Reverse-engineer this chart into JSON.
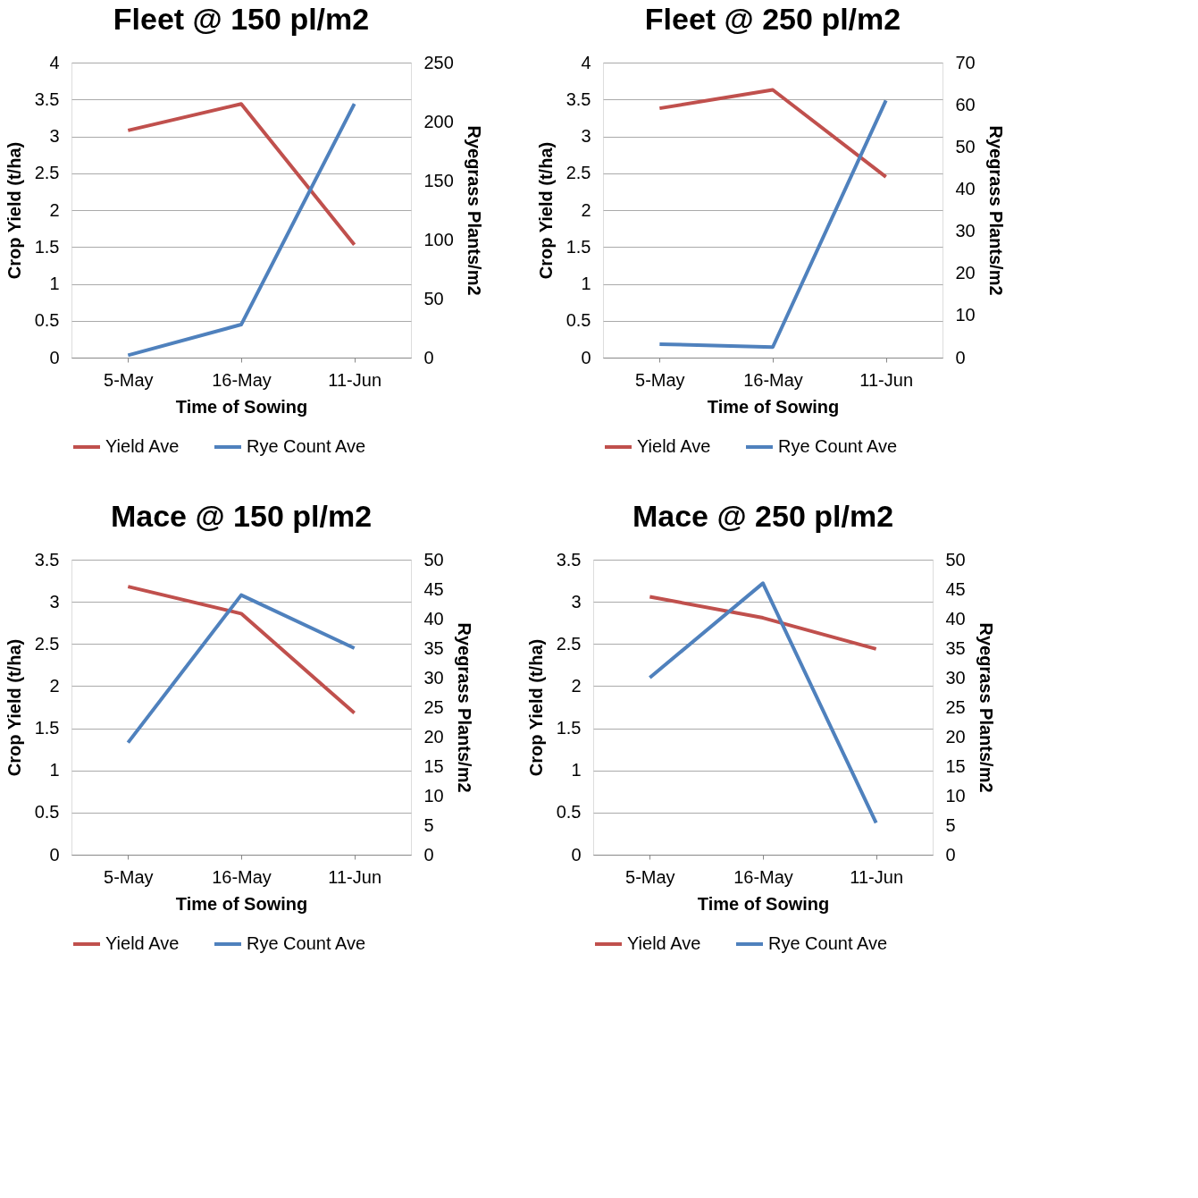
{
  "chart_data": [
    {
      "type": "line",
      "title": "Fleet @ 150 pl/m2",
      "xlabel": "Time of Sowing",
      "ylabel": "Crop Yield (t/ha)",
      "y2label": "Ryegrass Plants/m2",
      "categories": [
        "5-May",
        "16-May",
        "11-Jun"
      ],
      "ylim": [
        0,
        4
      ],
      "yticks": [
        0,
        0.5,
        1,
        1.5,
        2,
        2.5,
        3,
        3.5,
        4
      ],
      "y2lim": [
        0,
        250
      ],
      "y2ticks": [
        0,
        50,
        100,
        150,
        200,
        250
      ],
      "grid": "y",
      "legend": "bottom",
      "line_style": "solid",
      "series": [
        {
          "name": "Yield Ave",
          "color": "#c0504d",
          "values": [
            3.08,
            3.44,
            1.53
          ]
        },
        {
          "name": "Rye Count Ave",
          "color": "#4f81bd",
          "axis": "y2",
          "values": [
            2,
            28,
            215
          ]
        }
      ]
    },
    {
      "type": "line",
      "title": "Fleet @ 250 pl/m2",
      "xlabel": "Time of Sowing",
      "ylabel": "Crop Yield (t/ha)",
      "y2label": "Ryegrass Plants/m2",
      "categories": [
        "5-May",
        "16-May",
        "11-Jun"
      ],
      "ylim": [
        0,
        4
      ],
      "yticks": [
        0,
        0.5,
        1,
        1.5,
        2,
        2.5,
        3,
        3.5,
        4
      ],
      "y2lim": [
        0,
        70
      ],
      "y2ticks": [
        0,
        10,
        20,
        30,
        40,
        50,
        60,
        70
      ],
      "grid": "y",
      "legend": "bottom",
      "line_style": "solid",
      "series": [
        {
          "name": "Yield Ave",
          "color": "#c0504d",
          "values": [
            3.38,
            3.63,
            2.45
          ]
        },
        {
          "name": "Rye Count Ave",
          "color": "#4f81bd",
          "axis": "y2",
          "values": [
            3.2,
            2.5,
            61
          ]
        }
      ]
    },
    {
      "type": "line",
      "title": "Mace @ 150 pl/m2",
      "xlabel": "Time of Sowing",
      "ylabel": "Crop Yield (t/ha)",
      "y2label": "Ryegrass Plants/m2",
      "categories": [
        "5-May",
        "16-May",
        "11-Jun"
      ],
      "ylim": [
        0,
        3.5
      ],
      "yticks": [
        0,
        0.5,
        1,
        1.5,
        2,
        2.5,
        3,
        3.5
      ],
      "y2lim": [
        0,
        50
      ],
      "y2ticks": [
        0,
        5,
        10,
        15,
        20,
        25,
        30,
        35,
        40,
        45,
        50
      ],
      "grid": "y",
      "legend": "bottom",
      "line_style": "solid",
      "series": [
        {
          "name": "Yield Ave",
          "color": "#c0504d",
          "values": [
            3.18,
            2.86,
            1.68
          ]
        },
        {
          "name": "Rye Count Ave",
          "color": "#4f81bd",
          "axis": "y2",
          "values": [
            19,
            44,
            35
          ]
        }
      ]
    },
    {
      "type": "line",
      "title": "Mace @ 250 pl/m2",
      "xlabel": "Time of Sowing",
      "ylabel": "Crop Yield (t/ha)",
      "y2label": "Ryegrass Plants/m2",
      "categories": [
        "5-May",
        "16-May",
        "11-Jun"
      ],
      "ylim": [
        0,
        3.5
      ],
      "yticks": [
        0,
        0.5,
        1,
        1.5,
        2,
        2.5,
        3,
        3.5
      ],
      "y2lim": [
        0,
        50
      ],
      "y2ticks": [
        0,
        5,
        10,
        15,
        20,
        25,
        30,
        35,
        40,
        45,
        50
      ],
      "grid": "y",
      "legend": "bottom",
      "line_style": "solid",
      "series": [
        {
          "name": "Yield Ave",
          "color": "#c0504d",
          "values": [
            3.06,
            2.81,
            2.44
          ]
        },
        {
          "name": "Rye Count Ave",
          "color": "#4f81bd",
          "axis": "y2",
          "values": [
            30,
            46,
            5.4
          ]
        }
      ]
    }
  ]
}
